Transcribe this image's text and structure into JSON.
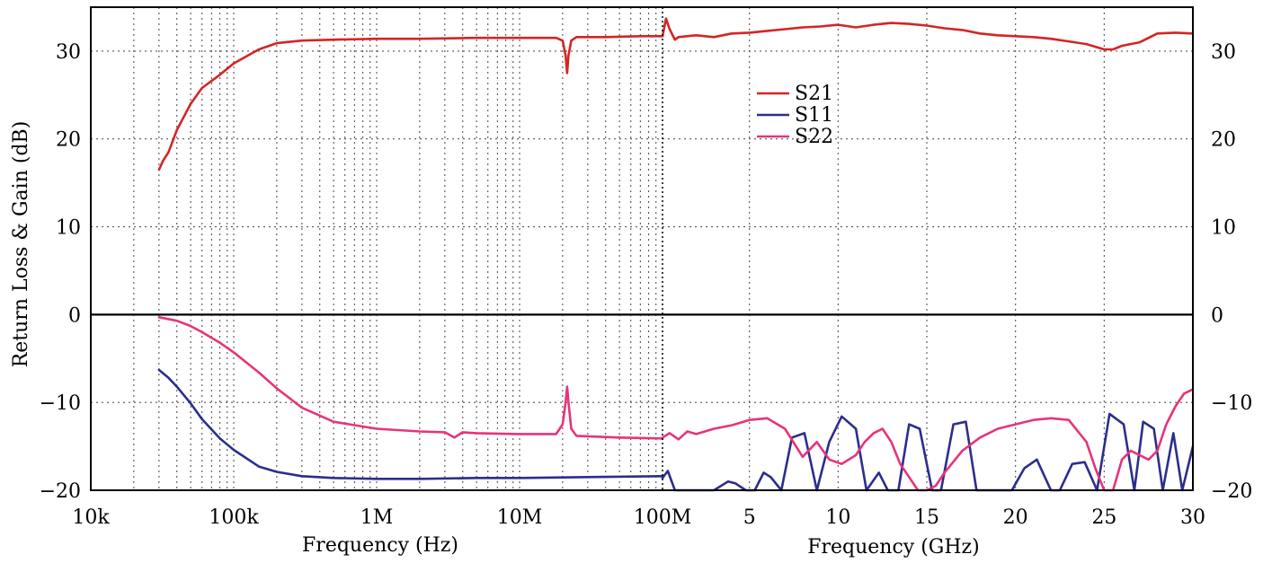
{
  "chart_data": {
    "type": "line",
    "ylabel": "Return Loss & Gain (dB)",
    "ylim": [
      -20,
      35
    ],
    "y_ticks": [
      "−20",
      "−10",
      "0",
      "10",
      "20",
      "30"
    ],
    "y_tick_values": [
      -20,
      -10,
      0,
      10,
      20,
      30
    ],
    "grid": true,
    "legend_position": "top-center",
    "panels": [
      {
        "name": "low-band",
        "xlabel": "Frequency (Hz)",
        "x_scale": "log",
        "xlim": [
          10000,
          100000000
        ],
        "x_ticks": [
          "10k",
          "100k",
          "1M",
          "10M",
          "100M"
        ],
        "x_tick_values": [
          10000,
          100000,
          1000000,
          10000000,
          100000000
        ],
        "series": [
          {
            "name": "S21",
            "color": "#d42525",
            "x": [
              30000,
              32000,
              35000,
              40000,
              50000,
              60000,
              80000,
              100000,
              150000,
              200000,
              300000,
              500000,
              1000000,
              2000000,
              5000000,
              10000000,
              18000000,
              20000000,
              21000000,
              21500000,
              22000000,
              23000000,
              25000000,
              40000000,
              70000000,
              100000000
            ],
            "y": [
              16.5,
              17.5,
              18.5,
              21,
              24,
              25.8,
              27.3,
              28.6,
              30.2,
              30.9,
              31.2,
              31.3,
              31.4,
              31.4,
              31.5,
              31.5,
              31.5,
              31.2,
              29.5,
              27.5,
              29.5,
              31.2,
              31.6,
              31.6,
              31.7,
              31.7
            ]
          },
          {
            "name": "S11",
            "color": "#2b2e8c",
            "x": [
              30000,
              35000,
              40000,
              50000,
              60000,
              80000,
              100000,
              150000,
              200000,
              300000,
              500000,
              1000000,
              2000000,
              5000000,
              10000000,
              30000000,
              100000000
            ],
            "y": [
              -6.3,
              -7.2,
              -8.2,
              -10.1,
              -11.9,
              -14.1,
              -15.4,
              -17.3,
              -17.9,
              -18.4,
              -18.6,
              -18.7,
              -18.7,
              -18.6,
              -18.6,
              -18.5,
              -18.4
            ]
          },
          {
            "name": "S22",
            "color": "#e8337a",
            "x": [
              30000,
              40000,
              50000,
              60000,
              80000,
              100000,
              150000,
              200000,
              300000,
              500000,
              1000000,
              2000000,
              3000000,
              3500000,
              4000000,
              5000000,
              10000000,
              18000000,
              20000000,
              21000000,
              21500000,
              22000000,
              23000000,
              25000000,
              50000000,
              100000000
            ],
            "y": [
              -0.3,
              -0.7,
              -1.3,
              -2.0,
              -3.2,
              -4.3,
              -6.6,
              -8.4,
              -10.6,
              -12.2,
              -13.0,
              -13.3,
              -13.4,
              -14.0,
              -13.4,
              -13.5,
              -13.6,
              -13.6,
              -12.5,
              -10.0,
              -8.2,
              -10.0,
              -13.0,
              -13.8,
              -14.0,
              -14.1
            ]
          }
        ]
      },
      {
        "name": "high-band",
        "xlabel": "Frequency (GHz)",
        "x_scale": "linear",
        "xlim": [
          0.1,
          30
        ],
        "x_ticks": [
          "5",
          "10",
          "15",
          "20",
          "25",
          "30"
        ],
        "x_tick_values": [
          5,
          10,
          15,
          20,
          25,
          30
        ],
        "series": [
          {
            "name": "S21",
            "color": "#d42525",
            "x": [
              0.1,
              0.3,
              0.5,
              0.8,
              1,
              2,
              3,
              4,
              5,
              6,
              7,
              8,
              9,
              10,
              11,
              12,
              13,
              14,
              15,
              16,
              17,
              18,
              19,
              20,
              21,
              22,
              23,
              24,
              25,
              25.5,
              26,
              27,
              28,
              29,
              30
            ],
            "y": [
              31.7,
              33.7,
              32.5,
              31.3,
              31.6,
              31.8,
              31.6,
              32.0,
              32.1,
              32.3,
              32.5,
              32.7,
              32.8,
              33.0,
              32.7,
              33.0,
              33.2,
              33.1,
              32.9,
              32.6,
              32.4,
              32.0,
              31.8,
              31.7,
              31.6,
              31.4,
              31.1,
              30.8,
              30.2,
              30.2,
              30.6,
              31.0,
              32.0,
              32.1,
              32.0
            ]
          },
          {
            "name": "S11",
            "color": "#2b2e8c",
            "x": [
              0.1,
              0.4,
              0.8,
              1.2,
              2.0,
              3.0,
              3.8,
              4.2,
              4.8,
              5.3,
              5.8,
              6.2,
              6.8,
              7.4,
              8.1,
              8.8,
              9.5,
              10.2,
              11.0,
              11.6,
              12.3,
              12.8,
              13.4,
              14.0,
              14.6,
              15.3,
              15.8,
              16.5,
              17.2,
              17.8,
              18.5,
              19.2,
              19.8,
              20.5,
              21.2,
              22.0,
              22.5,
              23.2,
              23.9,
              24.6,
              25.3,
              26.1,
              26.7,
              27.2,
              27.8,
              28.3,
              28.9,
              29.4,
              30.0
            ],
            "y": [
              -18.6,
              -17.8,
              -20.5,
              -20.5,
              -20.5,
              -20.5,
              -19.0,
              -19.2,
              -20.5,
              -20.5,
              -18.0,
              -18.5,
              -20.5,
              -14.0,
              -13.5,
              -20.5,
              -14.5,
              -11.6,
              -13.0,
              -20.5,
              -18.0,
              -20.0,
              -20.5,
              -12.5,
              -13.0,
              -20.5,
              -20.5,
              -12.5,
              -12.2,
              -20.5,
              -20.5,
              -20.5,
              -20.5,
              -17.5,
              -16.5,
              -20.5,
              -20.5,
              -17.0,
              -16.8,
              -20.5,
              -11.3,
              -12.5,
              -20.5,
              -12.2,
              -13.0,
              -20.5,
              -13.5,
              -20.5,
              -15.0
            ]
          },
          {
            "name": "S22",
            "color": "#e8337a",
            "x": [
              0.1,
              0.5,
              1.0,
              1.5,
              2.0,
              3.0,
              4.0,
              5.0,
              6.0,
              7.0,
              8.0,
              8.8,
              9.5,
              10.2,
              11.0,
              11.5,
              12.0,
              12.5,
              13.0,
              13.5,
              14.0,
              14.5,
              15.0,
              15.5,
              16.0,
              17.0,
              18.0,
              19.0,
              20.0,
              21.0,
              22.0,
              23.0,
              24.0,
              24.5,
              25.0,
              25.5,
              26.0,
              26.5,
              27.0,
              27.5,
              28.0,
              28.5,
              29.0,
              29.5,
              30.0
            ],
            "y": [
              -14.0,
              -13.5,
              -14.2,
              -13.3,
              -13.6,
              -13.0,
              -12.6,
              -12.0,
              -11.8,
              -13.0,
              -16.2,
              -14.5,
              -16.5,
              -17.0,
              -16.0,
              -14.5,
              -13.5,
              -13.0,
              -14.5,
              -17.0,
              -18.5,
              -20.0,
              -20.0,
              -19.5,
              -18.0,
              -15.5,
              -14.0,
              -13.0,
              -12.5,
              -12.0,
              -11.8,
              -12.0,
              -14.5,
              -17.5,
              -20.0,
              -20.5,
              -16.5,
              -15.5,
              -16.0,
              -16.5,
              -15.5,
              -12.5,
              -10.5,
              -9.0,
              -8.5
            ]
          }
        ]
      }
    ]
  }
}
